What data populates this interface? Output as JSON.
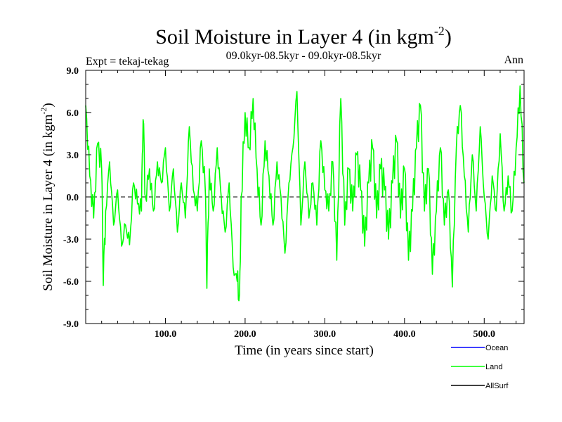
{
  "chart_data": {
    "type": "line",
    "title": "Soil Moisture in Layer 4 (in kgm",
    "title_superscript": "-2",
    "title_suffix": ")",
    "subtitle": "09.0kyr-08.5kyr - 09.0kyr-08.5kyr",
    "left_label": "Expt = tekaj-tekag",
    "right_label": "Ann",
    "xlabel": "Time (in years since start)",
    "ylabel": "Soil Moisture in Layer 4 (in kgm",
    "ylabel_superscript": "-2",
    "ylabel_suffix": ")",
    "xlim": [
      0,
      550
    ],
    "ylim": [
      -9,
      9
    ],
    "x_ticks": [
      100,
      200,
      300,
      400,
      500
    ],
    "x_tick_labels": [
      "100.0",
      "200.0",
      "300.0",
      "400.0",
      "500.0"
    ],
    "y_ticks": [
      -9,
      -6,
      -3,
      0,
      3,
      6,
      9
    ],
    "y_tick_labels": [
      "-9.0",
      "-6.0",
      "-3.0",
      "0.0",
      "3.0",
      "6.0",
      "9.0"
    ],
    "zero_line": true,
    "legend": [
      {
        "name": "Ocean",
        "color": "#0000ff"
      },
      {
        "name": "Land",
        "color": "#00ff00"
      },
      {
        "name": "AllSurf",
        "color": "#000000"
      }
    ],
    "series": [
      {
        "name": "Land",
        "color": "#00ff00",
        "x": [
          0,
          5,
          10,
          15,
          20,
          22,
          25,
          30,
          35,
          40,
          45,
          50,
          55,
          60,
          65,
          70,
          72,
          75,
          80,
          85,
          90,
          95,
          100,
          105,
          110,
          115,
          120,
          125,
          130,
          135,
          140,
          145,
          150,
          152,
          155,
          160,
          165,
          170,
          175,
          180,
          185,
          190,
          193,
          195,
          200,
          205,
          210,
          215,
          220,
          225,
          230,
          235,
          240,
          245,
          250,
          255,
          260,
          265,
          270,
          275,
          280,
          285,
          290,
          295,
          300,
          305,
          310,
          315,
          320,
          325,
          330,
          335,
          340,
          345,
          350,
          355,
          360,
          365,
          370,
          375,
          380,
          385,
          390,
          395,
          400,
          405,
          410,
          415,
          420,
          425,
          430,
          435,
          440,
          445,
          450,
          455,
          460,
          465,
          470,
          475,
          480,
          485,
          490,
          495,
          500,
          505,
          510,
          515,
          520,
          525,
          530,
          535,
          540,
          545,
          550
        ],
        "values": [
          6.5,
          1.5,
          -1.5,
          3.8,
          2.0,
          -6.3,
          -1.0,
          2.5,
          -2.0,
          0.5,
          -3.5,
          -2.0,
          -3.4,
          1.0,
          -0.5,
          -1.0,
          5.5,
          0.0,
          2.0,
          -1.0,
          2.5,
          1.0,
          3.5,
          -1.0,
          2.0,
          -2.5,
          1.0,
          -1.5,
          5.0,
          0.5,
          -1.0,
          4.0,
          0.5,
          -6.5,
          2.0,
          -1.0,
          3.5,
          0.0,
          -2.5,
          1.0,
          -5.0,
          -6.0,
          -6.9,
          0.0,
          6.0,
          3.5,
          7.0,
          2.0,
          -2.0,
          4.0,
          1.5,
          -2.0,
          2.5,
          0.0,
          -4.0,
          1.0,
          3.5,
          7.5,
          -2.0,
          2.5,
          -1.5,
          1.0,
          -2.0,
          4.0,
          0.5,
          -1.0,
          2.5,
          -4.5,
          7.0,
          -2.0,
          2.0,
          -1.0,
          3.0,
          0.5,
          -3.5,
          1.0,
          3.5,
          -1.5,
          2.0,
          0.5,
          -3.0,
          1.0,
          4.0,
          -1.5,
          2.0,
          -4.5,
          -1.0,
          3.5,
          6.5,
          -1.0,
          2.0,
          -5.5,
          -1.0,
          3.5,
          -2.0,
          0.5,
          -6.4,
          3.5,
          6.5,
          1.5,
          -2.5,
          3.0,
          -1.0,
          5.0,
          0.0,
          -3.0,
          1.5,
          -1.0,
          4.5,
          -1.0,
          1.5,
          -1.0,
          3.5,
          7.9,
          1.0
        ]
      }
    ]
  }
}
